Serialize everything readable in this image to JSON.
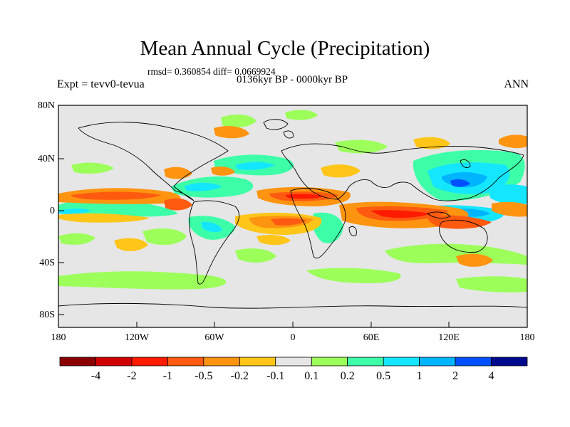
{
  "title": "Mean Annual Cycle (Precipitation)",
  "stats": "rmsd= 0.360854  diff= 0.0669924",
  "period": "0136kyr BP - 0000kyr BP",
  "experiment": "Expt = tevv0-tevua",
  "season": "ANN",
  "lat_labels": [
    "80N",
    "40N",
    "0",
    "40S",
    "80S"
  ],
  "lon_labels": [
    "180",
    "120W",
    "60W",
    "0",
    "60E",
    "120E",
    "180"
  ],
  "colorbar": {
    "labels": [
      "-4",
      "-2",
      "-1",
      "-0.5",
      "-0.2",
      "-0.1",
      "0.1",
      "0.2",
      "0.5",
      "1",
      "2",
      "4"
    ],
    "colors": [
      "#8b0000",
      "#d10000",
      "#ff1a00",
      "#ff5a10",
      "#ff9410",
      "#ffc518",
      "#e6e6e6",
      "#9cff5a",
      "#3dffa8",
      "#14e6ff",
      "#00b4ff",
      "#0050ff",
      "#000a8c"
    ]
  },
  "background_color": "#e6e6e6"
}
